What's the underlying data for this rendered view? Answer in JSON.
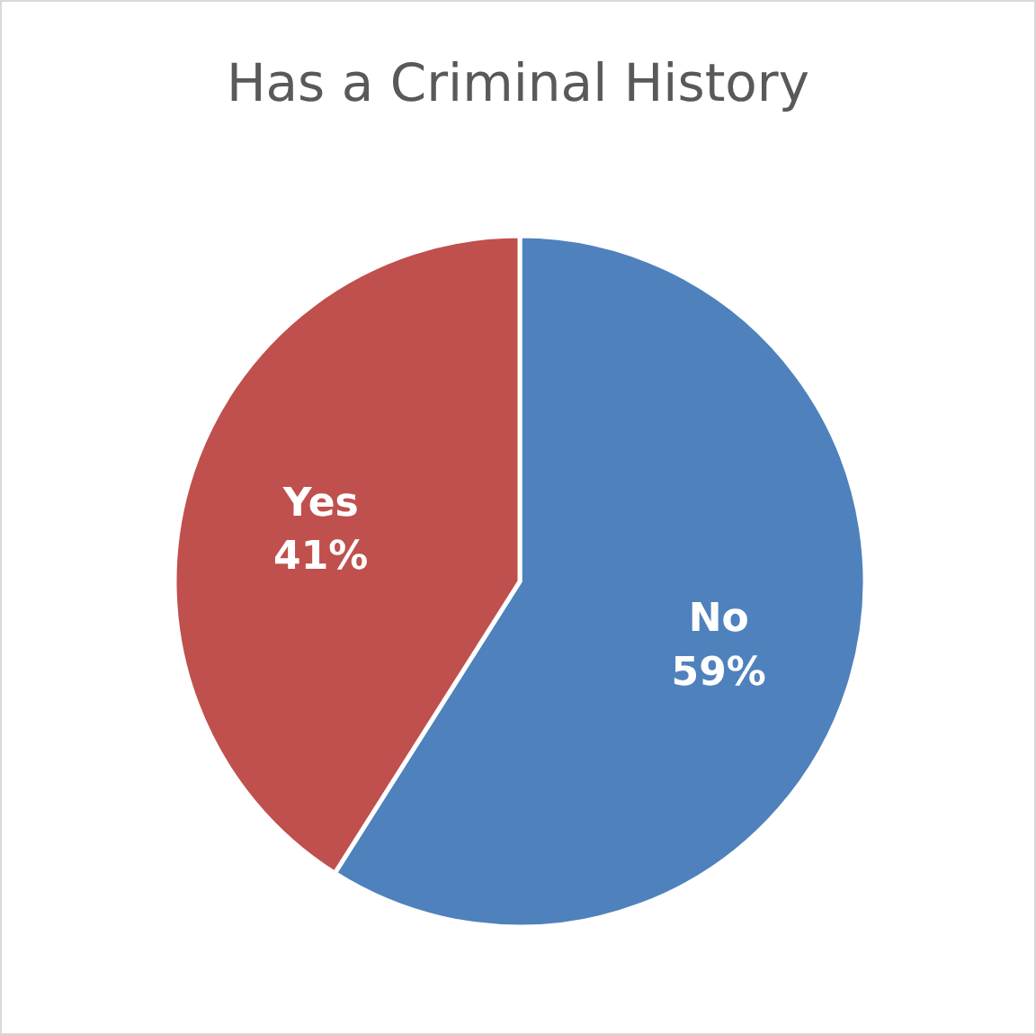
{
  "chart_data": {
    "type": "pie",
    "title": "Has a Criminal History",
    "categories": [
      "No",
      "Yes"
    ],
    "values": [
      59,
      41
    ],
    "colors": [
      "#4f81bd",
      "#c0504d"
    ],
    "value_labels": [
      "59%",
      "41%"
    ]
  }
}
